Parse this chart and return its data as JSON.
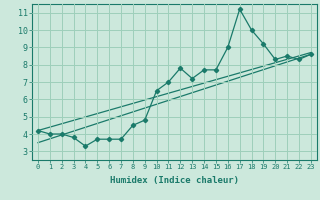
{
  "title": "",
  "xlabel": "Humidex (Indice chaleur)",
  "ylabel": "",
  "background_color": "#cce8dc",
  "grid_color": "#9ecfba",
  "line_color": "#1a7a6a",
  "xlim": [
    -0.5,
    23.5
  ],
  "ylim": [
    2.5,
    11.5
  ],
  "xticks": [
    0,
    1,
    2,
    3,
    4,
    5,
    6,
    7,
    8,
    9,
    10,
    11,
    12,
    13,
    14,
    15,
    16,
    17,
    18,
    19,
    20,
    21,
    22,
    23
  ],
  "yticks": [
    3,
    4,
    5,
    6,
    7,
    8,
    9,
    10,
    11
  ],
  "series1_x": [
    0,
    1,
    2,
    3,
    4,
    5,
    6,
    7,
    8,
    9,
    10,
    11,
    12,
    13,
    14,
    15,
    16,
    17,
    18,
    19,
    20,
    21,
    22,
    23
  ],
  "series1_y": [
    4.2,
    4.0,
    4.0,
    3.8,
    3.3,
    3.7,
    3.7,
    3.7,
    4.5,
    4.8,
    6.5,
    7.0,
    7.8,
    7.2,
    7.7,
    7.7,
    9.0,
    11.2,
    10.0,
    9.2,
    8.3,
    8.5,
    8.3,
    8.6
  ],
  "series2_x": [
    0,
    23
  ],
  "series2_y": [
    3.5,
    8.6
  ],
  "series3_x": [
    0,
    23
  ],
  "series3_y": [
    4.2,
    8.7
  ],
  "xlabel_fontsize": 6.5,
  "tick_fontsize_x": 5.0,
  "tick_fontsize_y": 6.0
}
